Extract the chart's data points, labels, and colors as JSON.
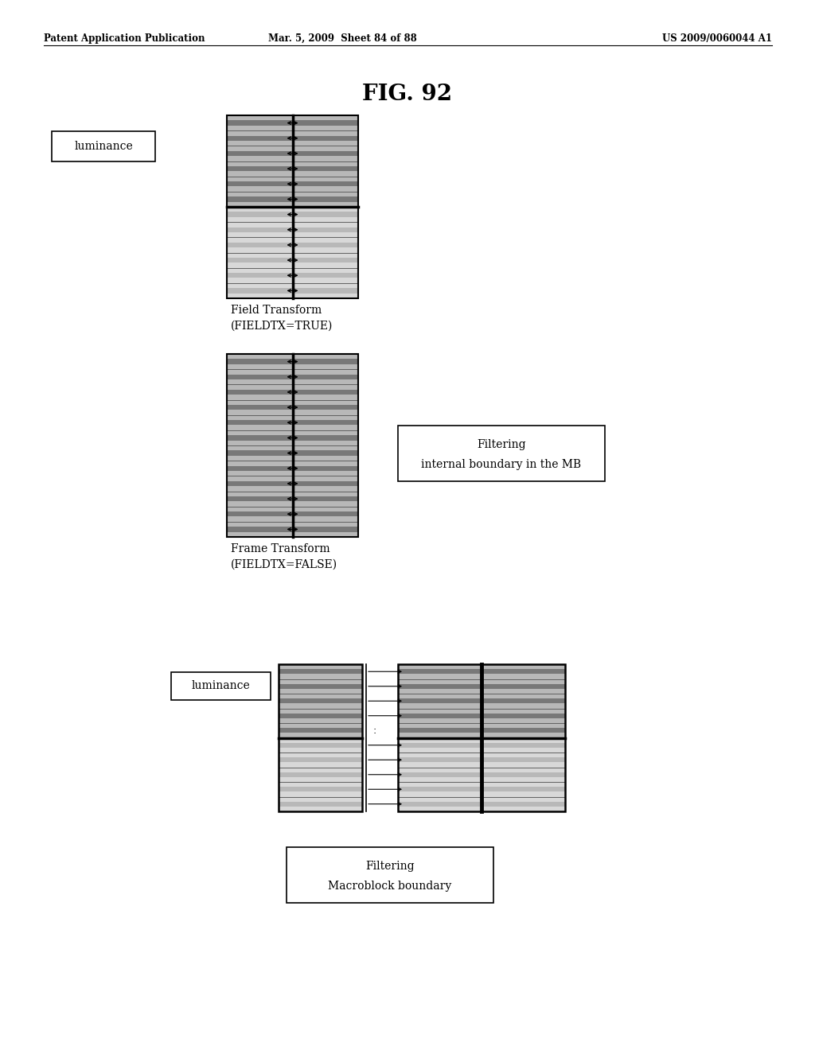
{
  "bg_color": "#ffffff",
  "header_left": "Patent Application Publication",
  "header_mid": "Mar. 5, 2009  Sheet 84 of 88",
  "header_right": "US 2009/0060044 A1",
  "fig_title": "FIG. 92",
  "d1_caption1": "Field Transform",
  "d1_caption2": "(FIELDTX=TRUE)",
  "d2_caption1": "Frame Transform",
  "d2_caption2": "(FIELDTX=FALSE)",
  "d2_filter1": "Filtering",
  "d2_filter2": "internal boundary in the MB",
  "d3_filter1": "Filtering",
  "d3_filter2": "Macroblock boundary",
  "luminance_label": "luminance",
  "light_stripe": "#d4d4d4",
  "dark_stripe": "#a0a0a0",
  "light_stripe2": "#c8c8c8",
  "dark_stripe2": "#888888",
  "crosshatch_light": "#c0c0c0",
  "crosshatch_dark": "#888888"
}
